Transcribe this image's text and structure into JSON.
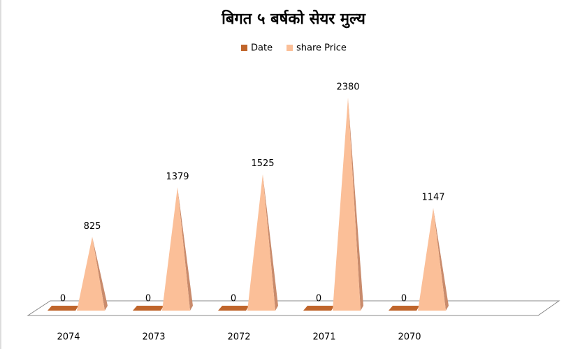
{
  "chart_data": {
    "type": "pyramid",
    "title": "बिगत ५ बर्षको सेयर मुल्य",
    "categories": [
      "2074",
      "2073",
      "2072",
      "2071",
      "2070"
    ],
    "series": [
      {
        "name": "Date",
        "color": "#c0652b",
        "values": [
          0,
          0,
          0,
          0,
          0
        ]
      },
      {
        "name": "share Price",
        "color": "#fbbf98",
        "values": [
          825,
          1379,
          1525,
          2380,
          1147
        ]
      }
    ],
    "legend": "top"
  }
}
